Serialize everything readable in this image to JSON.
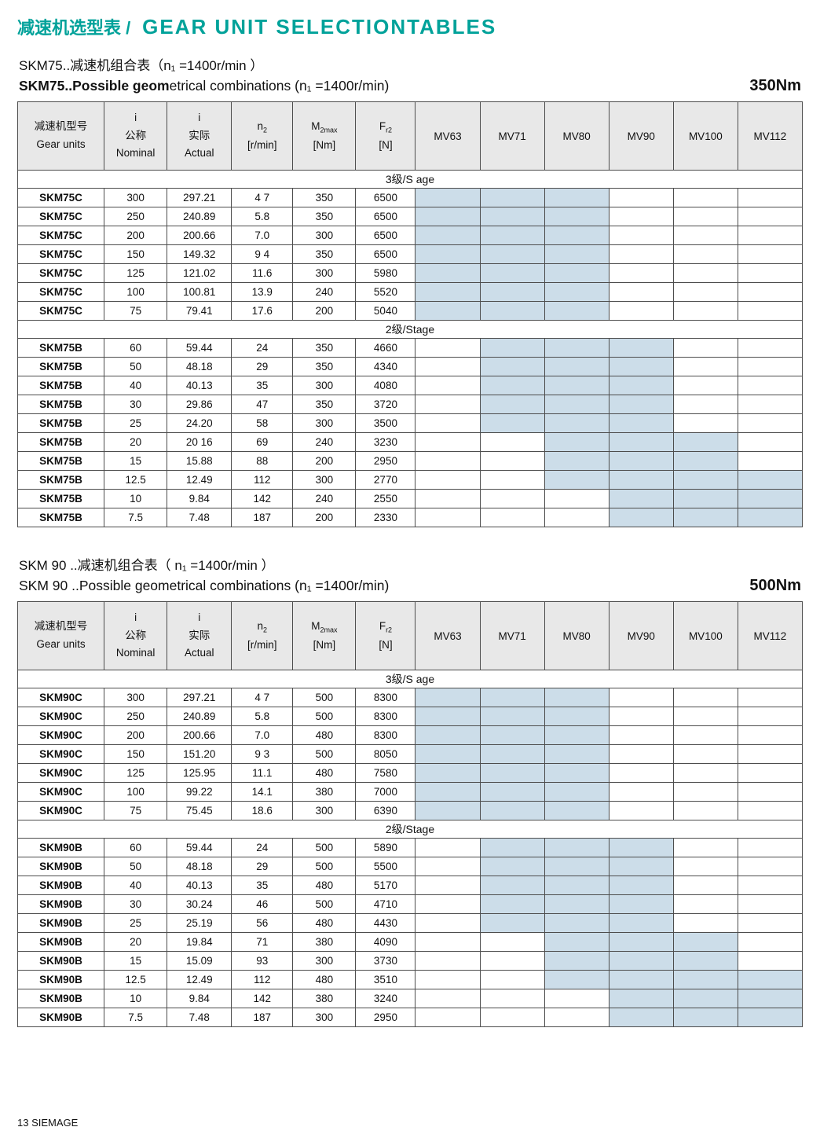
{
  "page": {
    "title_zh": "减速机选型表 /",
    "title_en": "GEAR UNIT SELECTIONTABLES",
    "footer": "13 SIEMAGE"
  },
  "colors": {
    "title_teal": "#00a29a",
    "shaded_cell": "#ccdde9",
    "header_bg": "#e8e8e8"
  },
  "columns": [
    {
      "type": "lines",
      "lines": [
        "减速机型号",
        "Gear units"
      ]
    },
    {
      "type": "lines",
      "lines": [
        "i",
        "公称",
        "Nominal"
      ]
    },
    {
      "type": "lines",
      "lines": [
        "i",
        "实际",
        "Actual"
      ]
    },
    {
      "type": "sym",
      "sym": "n",
      "sub": "2",
      "unit": "[r/min]"
    },
    {
      "type": "sym",
      "sym": "M",
      "sub": "2max",
      "unit": "[Nm]"
    },
    {
      "type": "sym",
      "sym": "F",
      "sub": "r2",
      "unit": "[N]"
    },
    {
      "type": "motor",
      "label": "MV63"
    },
    {
      "type": "motor",
      "label": "MV71"
    },
    {
      "type": "motor",
      "label": "MV80"
    },
    {
      "type": "motor",
      "label": "MV90"
    },
    {
      "type": "motor",
      "label": "MV100"
    },
    {
      "type": "motor",
      "label": "MV112"
    }
  ],
  "tables": [
    {
      "name": "SKM75",
      "heading_line1": "SKM75..减速机组合表（n₁ =1400r/min ）",
      "heading_line2_bold": "SKM75..Possible geom",
      "heading_line2_rest": "etrical combinations  (n₁ =1400r/min)",
      "torque": "350Nm",
      "sections": [
        {
          "label": "3级/S age",
          "rows": [
            {
              "cells": [
                "SKM75C",
                "300",
                "297.21",
                "4 7",
                "350",
                "6500"
              ],
              "shaded": [
                "MV63",
                "MV71",
                "MV80"
              ]
            },
            {
              "cells": [
                "SKM75C",
                "250",
                "240.89",
                "5.8",
                "350",
                "6500"
              ],
              "shaded": [
                "MV63",
                "MV71",
                "MV80"
              ]
            },
            {
              "cells": [
                "SKM75C",
                "200",
                "200.66",
                "7.0",
                "300",
                "6500"
              ],
              "shaded": [
                "MV63",
                "MV71",
                "MV80"
              ]
            },
            {
              "cells": [
                "SKM75C",
                "150",
                "149.32",
                "9 4",
                "350",
                "6500"
              ],
              "shaded": [
                "MV63",
                "MV71",
                "MV80"
              ]
            },
            {
              "cells": [
                "SKM75C",
                "125",
                "121.02",
                "11.6",
                "300",
                "5980"
              ],
              "shaded": [
                "MV63",
                "MV71",
                "MV80"
              ]
            },
            {
              "cells": [
                "SKM75C",
                "100",
                "100.81",
                "13.9",
                "240",
                "5520"
              ],
              "shaded": [
                "MV63",
                "MV71",
                "MV80"
              ]
            },
            {
              "cells": [
                "SKM75C",
                "75",
                "79.41",
                "17.6",
                "200",
                "5040"
              ],
              "shaded": [
                "MV63",
                "MV71",
                "MV80"
              ]
            }
          ]
        },
        {
          "label": "2级/Stage",
          "rows": [
            {
              "cells": [
                "SKM75B",
                "60",
                "59.44",
                "24",
                "350",
                "4660"
              ],
              "shaded": [
                "MV71",
                "MV80",
                "MV90"
              ]
            },
            {
              "cells": [
                "SKM75B",
                "50",
                "48.18",
                "29",
                "350",
                "4340"
              ],
              "shaded": [
                "MV71",
                "MV80",
                "MV90"
              ]
            },
            {
              "cells": [
                "SKM75B",
                "40",
                "40.13",
                "35",
                "300",
                "4080"
              ],
              "shaded": [
                "MV71",
                "MV80",
                "MV90"
              ]
            },
            {
              "cells": [
                "SKM75B",
                "30",
                "29.86",
                "47",
                "350",
                "3720"
              ],
              "shaded": [
                "MV71",
                "MV80",
                "MV90"
              ]
            },
            {
              "cells": [
                "SKM75B",
                "25",
                "24.20",
                "58",
                "300",
                "3500"
              ],
              "shaded": [
                "MV71",
                "MV80",
                "MV90"
              ]
            },
            {
              "cells": [
                "SKM75B",
                "20",
                "20 16",
                "69",
                "240",
                "3230"
              ],
              "shaded": [
                "MV80",
                "MV90",
                "MV100"
              ]
            },
            {
              "cells": [
                "SKM75B",
                "15",
                "15.88",
                "88",
                "200",
                "2950"
              ],
              "shaded": [
                "MV80",
                "MV90",
                "MV100"
              ]
            },
            {
              "cells": [
                "SKM75B",
                "12.5",
                "12.49",
                "112",
                "300",
                "2770"
              ],
              "shaded": [
                "MV80",
                "MV90",
                "MV100",
                "MV112"
              ]
            },
            {
              "cells": [
                "SKM75B",
                "10",
                "9.84",
                "142",
                "240",
                "2550"
              ],
              "shaded": [
                "MV90",
                "MV100",
                "MV112"
              ]
            },
            {
              "cells": [
                "SKM75B",
                "7.5",
                "7.48",
                "187",
                "200",
                "2330"
              ],
              "shaded": [
                "MV90",
                "MV100",
                "MV112"
              ]
            }
          ]
        }
      ]
    },
    {
      "name": "SKM90",
      "heading_line1": "SKM 90 ..减速机组合表（ n₁ =1400r/min ）",
      "heading_line2_bold": "",
      "heading_line2_rest": "SKM 90 ..Possible geometrical combinations (n₁ =1400r/min)",
      "torque": "500Nm",
      "sections": [
        {
          "label": "3级/S age",
          "rows": [
            {
              "cells": [
                "SKM90C",
                "300",
                "297.21",
                "4 7",
                "500",
                "8300"
              ],
              "shaded": [
                "MV63",
                "MV71",
                "MV80"
              ]
            },
            {
              "cells": [
                "SKM90C",
                "250",
                "240.89",
                "5.8",
                "500",
                "8300"
              ],
              "shaded": [
                "MV63",
                "MV71",
                "MV80"
              ]
            },
            {
              "cells": [
                "SKM90C",
                "200",
                "200.66",
                "7.0",
                "480",
                "8300"
              ],
              "shaded": [
                "MV63",
                "MV71",
                "MV80"
              ]
            },
            {
              "cells": [
                "SKM90C",
                "150",
                "151.20",
                "9 3",
                "500",
                "8050"
              ],
              "shaded": [
                "MV63",
                "MV71",
                "MV80"
              ]
            },
            {
              "cells": [
                "SKM90C",
                "125",
                "125.95",
                "11.1",
                "480",
                "7580"
              ],
              "shaded": [
                "MV63",
                "MV71",
                "MV80"
              ]
            },
            {
              "cells": [
                "SKM90C",
                "100",
                "99.22",
                "14.1",
                "380",
                "7000"
              ],
              "shaded": [
                "MV63",
                "MV71",
                "MV80"
              ]
            },
            {
              "cells": [
                "SKM90C",
                "75",
                "75.45",
                "18.6",
                "300",
                "6390"
              ],
              "shaded": [
                "MV63",
                "MV71",
                "MV80"
              ]
            }
          ]
        },
        {
          "label": "2级/Stage",
          "rows": [
            {
              "cells": [
                "SKM90B",
                "60",
                "59.44",
                "24",
                "500",
                "5890"
              ],
              "shaded": [
                "MV71",
                "MV80",
                "MV90"
              ]
            },
            {
              "cells": [
                "SKM90B",
                "50",
                "48.18",
                "29",
                "500",
                "5500"
              ],
              "shaded": [
                "MV71",
                "MV80",
                "MV90"
              ]
            },
            {
              "cells": [
                "SKM90B",
                "40",
                "40.13",
                "35",
                "480",
                "5170"
              ],
              "shaded": [
                "MV71",
                "MV80",
                "MV90"
              ]
            },
            {
              "cells": [
                "SKM90B",
                "30",
                "30.24",
                "46",
                "500",
                "4710"
              ],
              "shaded": [
                "MV71",
                "MV80",
                "MV90"
              ]
            },
            {
              "cells": [
                "SKM90B",
                "25",
                "25.19",
                "56",
                "480",
                "4430"
              ],
              "shaded": [
                "MV71",
                "MV80",
                "MV90"
              ]
            },
            {
              "cells": [
                "SKM90B",
                "20",
                "19.84",
                "71",
                "380",
                "4090"
              ],
              "shaded": [
                "MV80",
                "MV90",
                "MV100"
              ]
            },
            {
              "cells": [
                "SKM90B",
                "15",
                "15.09",
                "93",
                "300",
                "3730"
              ],
              "shaded": [
                "MV80",
                "MV90",
                "MV100"
              ]
            },
            {
              "cells": [
                "SKM90B",
                "12.5",
                "12.49",
                "112",
                "480",
                "3510"
              ],
              "shaded": [
                "MV80",
                "MV90",
                "MV100",
                "MV112"
              ]
            },
            {
              "cells": [
                "SKM90B",
                "10",
                "9.84",
                "142",
                "380",
                "3240"
              ],
              "shaded": [
                "MV90",
                "MV100",
                "MV112"
              ]
            },
            {
              "cells": [
                "SKM90B",
                "7.5",
                "7.48",
                "187",
                "300",
                "2950"
              ],
              "shaded": [
                "MV90",
                "MV100",
                "MV112"
              ]
            }
          ]
        }
      ]
    }
  ]
}
